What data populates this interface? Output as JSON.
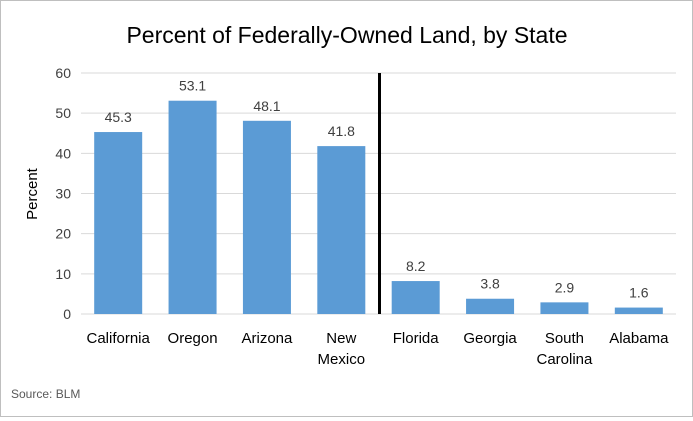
{
  "chart_data": {
    "type": "bar",
    "title": "Percent of Federally-Owned Land, by State",
    "xlabel": "",
    "ylabel": "Percent",
    "ylim": [
      0,
      60
    ],
    "yticks": [
      0,
      10,
      20,
      30,
      40,
      50,
      60
    ],
    "grid": true,
    "categories": [
      [
        "California"
      ],
      [
        "Oregon"
      ],
      [
        "Arizona"
      ],
      [
        "New",
        "Mexico"
      ],
      [
        "Florida"
      ],
      [
        "Georgia"
      ],
      [
        "South",
        "Carolina"
      ],
      [
        "Alabama"
      ]
    ],
    "values": [
      45.3,
      53.1,
      48.1,
      41.8,
      8.2,
      3.8,
      2.9,
      1.6
    ],
    "value_labels": [
      "45.3",
      "53.1",
      "48.1",
      "41.8",
      "8.2",
      "3.8",
      "2.9",
      "1.6"
    ],
    "divider_after_index": 3,
    "bar_color": "#5b9bd5",
    "grid_color": "#d9d9d9",
    "divider_color": "#000000"
  },
  "source": "Source: BLM"
}
